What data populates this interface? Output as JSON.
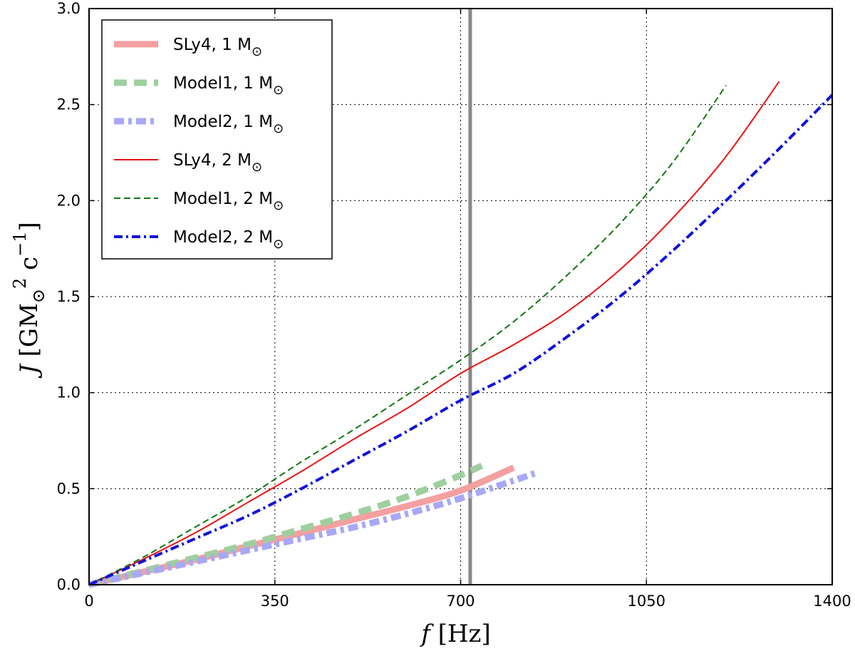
{
  "chart_data": {
    "type": "line",
    "title": "",
    "xlabel": {
      "var": "f",
      "unit": "Hz"
    },
    "ylabel": {
      "var": "J",
      "unit_main": "GM",
      "unit_sup": "2",
      "unit_c": "c",
      "unit_c_sup": "−1",
      "sun": "⊙"
    },
    "xlim": [
      0,
      1400
    ],
    "ylim": [
      0,
      3.0
    ],
    "x_ticks": [
      "0",
      "350",
      "700",
      "1050",
      "1400"
    ],
    "x_tick_values": [
      0,
      350,
      700,
      1050,
      1400
    ],
    "y_ticks": [
      "0.0",
      "0.5",
      "1.0",
      "1.5",
      "2.0",
      "2.5",
      "3.0"
    ],
    "y_tick_values": [
      0,
      0.5,
      1.0,
      1.5,
      2.0,
      2.5,
      3.0
    ],
    "grid": true,
    "legend_position": "top-left",
    "sun_symbol": "⊙",
    "vline": {
      "x": 718,
      "color": "#888888"
    },
    "series": [
      {
        "name": "SLy4, 1 M",
        "color": "#f4a0a0",
        "style": "thick-solid",
        "x": [
          0,
          100,
          200,
          300,
          400,
          500,
          600,
          700,
          800
        ],
        "y": [
          0,
          0.065,
          0.13,
          0.2,
          0.27,
          0.34,
          0.41,
          0.49,
          0.61
        ]
      },
      {
        "name": "Model1, 1 M",
        "color": "#9fcf9f",
        "style": "thick-dash",
        "x": [
          0,
          100,
          200,
          300,
          400,
          500,
          600,
          700,
          740
        ],
        "y": [
          0,
          0.07,
          0.14,
          0.21,
          0.29,
          0.37,
          0.46,
          0.57,
          0.62
        ]
      },
      {
        "name": "Model2, 1 M",
        "color": "#a8a8f8",
        "style": "thick-dashdot",
        "x": [
          0,
          100,
          200,
          300,
          400,
          500,
          600,
          700,
          840
        ],
        "y": [
          0,
          0.06,
          0.12,
          0.18,
          0.24,
          0.3,
          0.37,
          0.45,
          0.58
        ]
      },
      {
        "name": "SLy4, 2 M",
        "color": "#ee1111",
        "style": "solid",
        "x": [
          0,
          100,
          200,
          300,
          400,
          500,
          600,
          700,
          800,
          900,
          1000,
          1100,
          1200,
          1300
        ],
        "y": [
          0,
          0.13,
          0.27,
          0.43,
          0.59,
          0.76,
          0.92,
          1.1,
          1.25,
          1.42,
          1.64,
          1.91,
          2.23,
          2.62
        ]
      },
      {
        "name": "Model1, 2 M",
        "color": "#117711",
        "style": "dash",
        "x": [
          0,
          100,
          200,
          300,
          400,
          500,
          600,
          700,
          800,
          900,
          1000,
          1100,
          1200
        ],
        "y": [
          0,
          0.14,
          0.3,
          0.46,
          0.64,
          0.81,
          0.99,
          1.17,
          1.37,
          1.61,
          1.88,
          2.2,
          2.6
        ]
      },
      {
        "name": "Model2, 2 M",
        "color": "#1111dd",
        "style": "dashdot",
        "x": [
          0,
          100,
          200,
          300,
          400,
          500,
          600,
          700,
          800,
          900,
          1000,
          1100,
          1200,
          1300,
          1400
        ],
        "y": [
          0,
          0.12,
          0.24,
          0.36,
          0.5,
          0.65,
          0.8,
          0.96,
          1.1,
          1.29,
          1.5,
          1.74,
          2.0,
          2.27,
          2.55
        ]
      }
    ]
  }
}
